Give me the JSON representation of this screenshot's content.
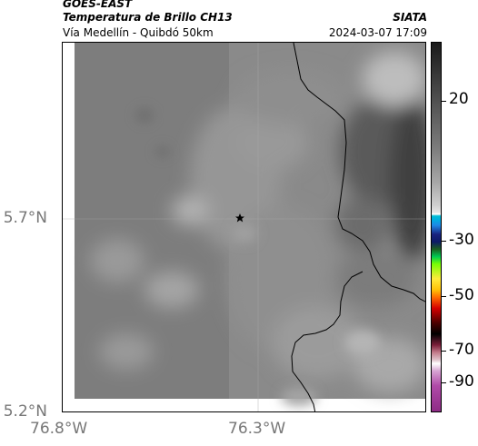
{
  "header": {
    "satellite": "GOES-EAST",
    "product": "Temperatura de Brillo CH13",
    "region": "Vía Medellín - Quibdó 50km",
    "organization": "SIATA",
    "timestamp": "2024-03-07 17:09"
  },
  "axes": {
    "lat_labels": [
      "5.7°N",
      "5.2°N"
    ],
    "lon_labels": [
      "76.8°W",
      "76.3°W"
    ]
  },
  "colorbar": {
    "tick_labels": [
      "20",
      "-30",
      "-50",
      "-70",
      "-90"
    ]
  },
  "colors": {
    "land_dark": "#7a7a7a",
    "land_mid": "#8c8c8c",
    "cloud_light": "#bdbdbd",
    "cloud_dark": "#3a3a3a"
  }
}
